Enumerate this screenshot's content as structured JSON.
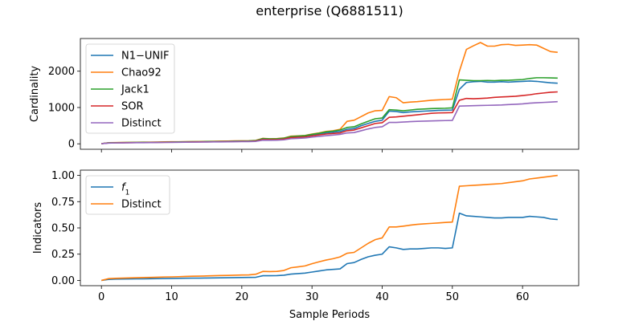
{
  "title": "enterprise (Q6881511)",
  "xlabel": "Sample Periods",
  "colors": {
    "blue": "#1f77b4",
    "orange": "#ff7f0e",
    "green": "#2ca02c",
    "red": "#d62728",
    "purple": "#9467bd"
  },
  "chart_data": [
    {
      "type": "line",
      "ylabel": "Cardinality",
      "xlim": [
        -3,
        68
      ],
      "ylim": [
        -150,
        2900
      ],
      "xticks": [
        0,
        10,
        20,
        30,
        40,
        50,
        60
      ],
      "xtick_labels_visible": false,
      "yticks": [
        0,
        1000,
        2000
      ],
      "ytick_labels": [
        "0",
        "1000",
        "2000"
      ],
      "legend_position": "upper-left",
      "series": [
        {
          "name": "N1−UNIF",
          "color": "blue",
          "x": [
            0,
            1,
            2,
            3,
            4,
            5,
            6,
            7,
            8,
            9,
            10,
            11,
            12,
            13,
            14,
            15,
            16,
            17,
            18,
            19,
            20,
            21,
            22,
            23,
            24,
            25,
            26,
            27,
            28,
            29,
            30,
            31,
            32,
            33,
            34,
            35,
            36,
            37,
            38,
            39,
            40,
            41,
            42,
            43,
            44,
            45,
            46,
            47,
            48,
            49,
            50,
            51,
            52,
            53,
            54,
            55,
            56,
            57,
            58,
            59,
            60,
            61,
            62,
            63,
            64,
            65
          ],
          "y": [
            5,
            25,
            30,
            32,
            35,
            37,
            38,
            40,
            42,
            45,
            48,
            50,
            52,
            54,
            56,
            58,
            60,
            62,
            65,
            68,
            70,
            72,
            80,
            130,
            128,
            130,
            145,
            190,
            200,
            205,
            240,
            270,
            300,
            320,
            340,
            400,
            420,
            500,
            560,
            620,
            650,
            900,
            890,
            860,
            880,
            890,
            900,
            910,
            920,
            925,
            930,
            1500,
            1690,
            1710,
            1720,
            1700,
            1700,
            1710,
            1700,
            1710,
            1720,
            1730,
            1720,
            1700,
            1680,
            1670
          ]
        },
        {
          "name": "Chao92",
          "color": "orange",
          "x": [
            0,
            1,
            2,
            3,
            4,
            5,
            6,
            7,
            8,
            9,
            10,
            11,
            12,
            13,
            14,
            15,
            16,
            17,
            18,
            19,
            20,
            21,
            22,
            23,
            24,
            25,
            26,
            27,
            28,
            29,
            30,
            31,
            32,
            33,
            34,
            35,
            36,
            37,
            38,
            39,
            40,
            41,
            42,
            43,
            44,
            45,
            46,
            47,
            48,
            49,
            50,
            51,
            52,
            53,
            54,
            55,
            56,
            57,
            58,
            59,
            60,
            61,
            62,
            63,
            64,
            65
          ],
          "y": [
            5,
            30,
            35,
            37,
            40,
            42,
            44,
            46,
            48,
            52,
            55,
            57,
            60,
            62,
            65,
            68,
            70,
            73,
            76,
            80,
            82,
            85,
            95,
            150,
            140,
            145,
            160,
            210,
            220,
            230,
            270,
            300,
            340,
            360,
            400,
            620,
            650,
            750,
            850,
            910,
            920,
            1300,
            1270,
            1130,
            1150,
            1160,
            1180,
            1200,
            1210,
            1220,
            1230,
            2000,
            2600,
            2700,
            2790,
            2690,
            2690,
            2730,
            2740,
            2710,
            2720,
            2730,
            2720,
            2630,
            2540,
            2520
          ]
        },
        {
          "name": "Jack1",
          "color": "green",
          "x": [
            0,
            1,
            2,
            3,
            4,
            5,
            6,
            7,
            8,
            9,
            10,
            11,
            12,
            13,
            14,
            15,
            16,
            17,
            18,
            19,
            20,
            21,
            22,
            23,
            24,
            25,
            26,
            27,
            28,
            29,
            30,
            31,
            32,
            33,
            34,
            35,
            36,
            37,
            38,
            39,
            40,
            41,
            42,
            43,
            44,
            45,
            46,
            47,
            48,
            49,
            50,
            51,
            52,
            53,
            54,
            55,
            56,
            57,
            58,
            59,
            60,
            61,
            62,
            63,
            64,
            65
          ],
          "y": [
            5,
            28,
            32,
            34,
            37,
            39,
            41,
            43,
            45,
            48,
            51,
            53,
            56,
            58,
            60,
            63,
            65,
            68,
            71,
            74,
            77,
            80,
            90,
            145,
            135,
            140,
            155,
            200,
            215,
            225,
            260,
            290,
            330,
            350,
            380,
            450,
            470,
            550,
            620,
            690,
            710,
            940,
            930,
            910,
            930,
            950,
            960,
            970,
            975,
            980,
            990,
            1760,
            1750,
            1740,
            1740,
            1745,
            1740,
            1750,
            1750,
            1760,
            1770,
            1800,
            1820,
            1820,
            1815,
            1810
          ]
        },
        {
          "name": "SOR",
          "color": "red",
          "x": [
            0,
            1,
            2,
            3,
            4,
            5,
            6,
            7,
            8,
            9,
            10,
            11,
            12,
            13,
            14,
            15,
            16,
            17,
            18,
            19,
            20,
            21,
            22,
            23,
            24,
            25,
            26,
            27,
            28,
            29,
            30,
            31,
            32,
            33,
            34,
            35,
            36,
            37,
            38,
            39,
            40,
            41,
            42,
            43,
            44,
            45,
            46,
            47,
            48,
            49,
            50,
            51,
            52,
            53,
            54,
            55,
            56,
            57,
            58,
            59,
            60,
            61,
            62,
            63,
            64,
            65
          ],
          "y": [
            5,
            22,
            27,
            29,
            31,
            33,
            35,
            37,
            39,
            42,
            44,
            46,
            48,
            50,
            52,
            54,
            56,
            58,
            61,
            64,
            66,
            68,
            75,
            120,
            115,
            118,
            130,
            170,
            180,
            190,
            220,
            245,
            270,
            285,
            300,
            360,
            380,
            440,
            500,
            560,
            580,
            730,
            740,
            760,
            780,
            800,
            820,
            840,
            850,
            855,
            860,
            1200,
            1250,
            1240,
            1250,
            1260,
            1280,
            1290,
            1300,
            1310,
            1330,
            1350,
            1380,
            1400,
            1420,
            1430
          ]
        },
        {
          "name": "Distinct",
          "color": "purple",
          "x": [
            0,
            1,
            2,
            3,
            4,
            5,
            6,
            7,
            8,
            9,
            10,
            11,
            12,
            13,
            14,
            15,
            16,
            17,
            18,
            19,
            20,
            21,
            22,
            23,
            24,
            25,
            26,
            27,
            28,
            29,
            30,
            31,
            32,
            33,
            34,
            35,
            36,
            37,
            38,
            39,
            40,
            41,
            42,
            43,
            44,
            45,
            46,
            47,
            48,
            49,
            50,
            51,
            52,
            53,
            54,
            55,
            56,
            57,
            58,
            59,
            60,
            61,
            62,
            63,
            64,
            65
          ],
          "y": [
            5,
            20,
            24,
            26,
            28,
            30,
            32,
            34,
            36,
            38,
            40,
            42,
            44,
            46,
            48,
            50,
            52,
            54,
            56,
            58,
            60,
            62,
            68,
            100,
            98,
            100,
            110,
            140,
            150,
            160,
            185,
            205,
            225,
            240,
            260,
            300,
            310,
            360,
            410,
            450,
            470,
            590,
            590,
            600,
            610,
            620,
            625,
            630,
            635,
            640,
            645,
            1040,
            1045,
            1050,
            1055,
            1060,
            1065,
            1070,
            1080,
            1090,
            1100,
            1120,
            1130,
            1140,
            1150,
            1160
          ]
        }
      ]
    },
    {
      "type": "line",
      "ylabel": "Indicators",
      "xlim": [
        -3,
        68
      ],
      "ylim": [
        -0.05,
        1.05
      ],
      "xticks": [
        0,
        10,
        20,
        30,
        40,
        50,
        60
      ],
      "xtick_labels": [
        "0",
        "10",
        "20",
        "30",
        "40",
        "50",
        "60"
      ],
      "yticks": [
        0,
        0.25,
        0.5,
        0.75,
        1
      ],
      "ytick_labels": [
        "0.00",
        "0.25",
        "0.50",
        "0.75",
        "1.00"
      ],
      "legend_position": "upper-left",
      "series": [
        {
          "name": "f1",
          "color": "blue",
          "x": [
            0,
            1,
            2,
            3,
            4,
            5,
            6,
            7,
            8,
            9,
            10,
            11,
            12,
            13,
            14,
            15,
            16,
            17,
            18,
            19,
            20,
            21,
            22,
            23,
            24,
            25,
            26,
            27,
            28,
            29,
            30,
            31,
            32,
            33,
            34,
            35,
            36,
            37,
            38,
            39,
            40,
            41,
            42,
            43,
            44,
            45,
            46,
            47,
            48,
            49,
            50,
            51,
            52,
            53,
            54,
            55,
            56,
            57,
            58,
            59,
            60,
            61,
            62,
            63,
            64,
            65
          ],
          "y": [
            0.0,
            0.01,
            0.012,
            0.013,
            0.014,
            0.015,
            0.015,
            0.016,
            0.017,
            0.018,
            0.019,
            0.02,
            0.021,
            0.022,
            0.022,
            0.023,
            0.024,
            0.025,
            0.026,
            0.027,
            0.028,
            0.029,
            0.03,
            0.045,
            0.045,
            0.046,
            0.05,
            0.06,
            0.065,
            0.07,
            0.08,
            0.09,
            0.1,
            0.105,
            0.11,
            0.16,
            0.17,
            0.2,
            0.225,
            0.24,
            0.25,
            0.32,
            0.31,
            0.295,
            0.3,
            0.3,
            0.305,
            0.31,
            0.31,
            0.305,
            0.31,
            0.64,
            0.615,
            0.61,
            0.605,
            0.6,
            0.595,
            0.595,
            0.6,
            0.6,
            0.6,
            0.61,
            0.605,
            0.6,
            0.585,
            0.58
          ]
        },
        {
          "name": "Distinct",
          "color": "orange",
          "x": [
            0,
            1,
            2,
            3,
            4,
            5,
            6,
            7,
            8,
            9,
            10,
            11,
            12,
            13,
            14,
            15,
            16,
            17,
            18,
            19,
            20,
            21,
            22,
            23,
            24,
            25,
            26,
            27,
            28,
            29,
            30,
            31,
            32,
            33,
            34,
            35,
            36,
            37,
            38,
            39,
            40,
            41,
            42,
            43,
            44,
            45,
            46,
            47,
            48,
            49,
            50,
            51,
            52,
            53,
            54,
            55,
            56,
            57,
            58,
            59,
            60,
            61,
            62,
            63,
            64,
            65
          ],
          "y": [
            0.0,
            0.017,
            0.02,
            0.022,
            0.024,
            0.026,
            0.028,
            0.029,
            0.031,
            0.033,
            0.034,
            0.036,
            0.038,
            0.04,
            0.041,
            0.043,
            0.045,
            0.047,
            0.048,
            0.05,
            0.052,
            0.053,
            0.059,
            0.086,
            0.084,
            0.086,
            0.095,
            0.121,
            0.129,
            0.138,
            0.159,
            0.177,
            0.194,
            0.207,
            0.224,
            0.259,
            0.267,
            0.31,
            0.353,
            0.388,
            0.405,
            0.509,
            0.509,
            0.517,
            0.526,
            0.534,
            0.539,
            0.543,
            0.547,
            0.552,
            0.556,
            0.897,
            0.901,
            0.905,
            0.909,
            0.914,
            0.918,
            0.922,
            0.931,
            0.94,
            0.948,
            0.966,
            0.974,
            0.983,
            0.991,
            1.0
          ]
        }
      ]
    }
  ]
}
